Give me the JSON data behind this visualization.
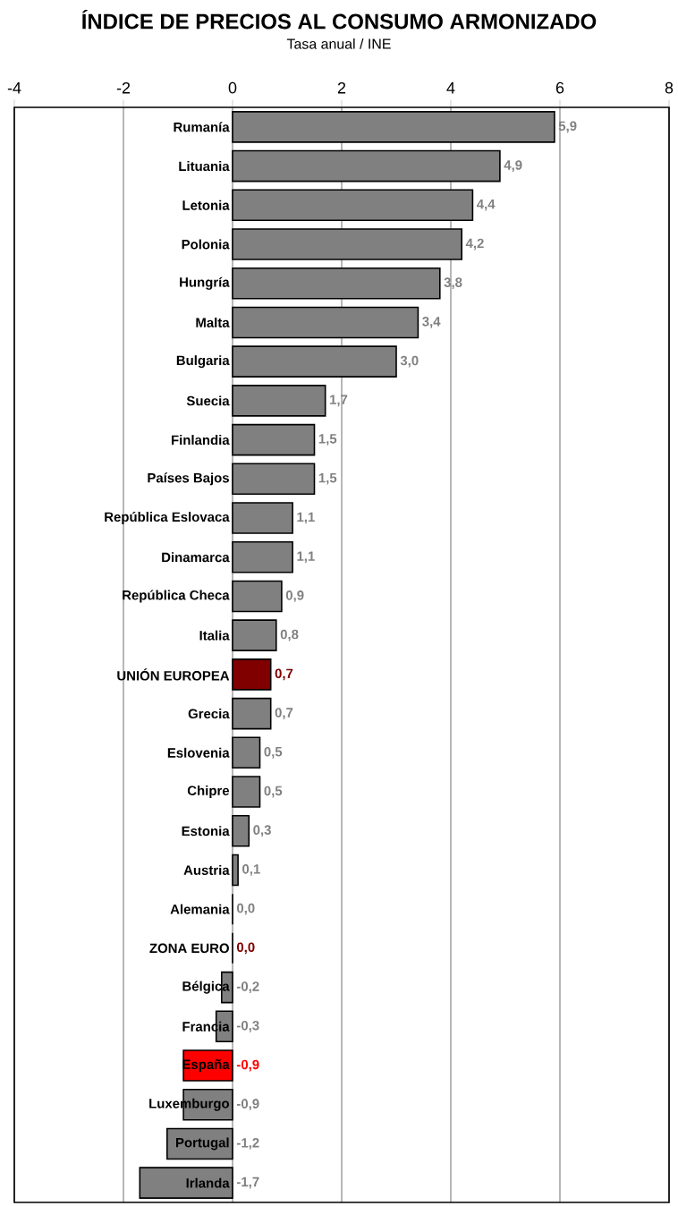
{
  "chart_data": {
    "type": "bar",
    "orientation": "horizontal",
    "title": "ÍNDICE DE PRECIOS AL CONSUMO ARMONIZADO",
    "subtitle": "Tasa anual / INE",
    "categories": [
      "Rumanía",
      "Lituania",
      "Letonia",
      "Polonia",
      "Hungría",
      "Malta",
      "Bulgaria",
      "Suecia",
      "Finlandia",
      "Países Bajos",
      "República Eslovaca",
      "Dinamarca",
      "República Checa",
      "Italia",
      "UNIÓN EUROPEA",
      "Grecia",
      "Eslovenia",
      "Chipre",
      "Estonia",
      "Austria",
      "Alemania",
      "ZONA EURO",
      "Bélgica",
      "Francia",
      "España",
      "Luxemburgo",
      "Portugal",
      "Irlanda"
    ],
    "values": [
      5.9,
      4.9,
      4.4,
      4.2,
      3.8,
      3.4,
      3.0,
      1.7,
      1.5,
      1.5,
      1.1,
      1.1,
      0.9,
      0.8,
      0.7,
      0.7,
      0.5,
      0.5,
      0.3,
      0.1,
      0.0,
      0.0,
      -0.2,
      -0.3,
      -0.9,
      -0.9,
      -1.2,
      -1.7
    ],
    "value_labels": [
      "5,9",
      "4,9",
      "4,4",
      "4,2",
      "3,8",
      "3,4",
      "3,0",
      "1,7",
      "1,5",
      "1,5",
      "1,1",
      "1,1",
      "0,9",
      "0,8",
      "0,7",
      "0,7",
      "0,5",
      "0,5",
      "0,3",
      "0,1",
      "0,0",
      "0,0",
      "-0,2",
      "-0,3",
      "-0,9",
      "-0,9",
      "-1,2",
      "-1,7"
    ],
    "colors": [
      "#808080",
      "#808080",
      "#808080",
      "#808080",
      "#808080",
      "#808080",
      "#808080",
      "#808080",
      "#808080",
      "#808080",
      "#808080",
      "#808080",
      "#808080",
      "#808080",
      "#800000",
      "#808080",
      "#808080",
      "#808080",
      "#808080",
      "#808080",
      "#808080",
      "#800000",
      "#808080",
      "#808080",
      "#ff0000",
      "#808080",
      "#808080",
      "#808080"
    ],
    "xlim": [
      -4,
      8
    ],
    "xticks": [
      -4,
      -2,
      0,
      2,
      4,
      6,
      8
    ],
    "grid": true
  }
}
